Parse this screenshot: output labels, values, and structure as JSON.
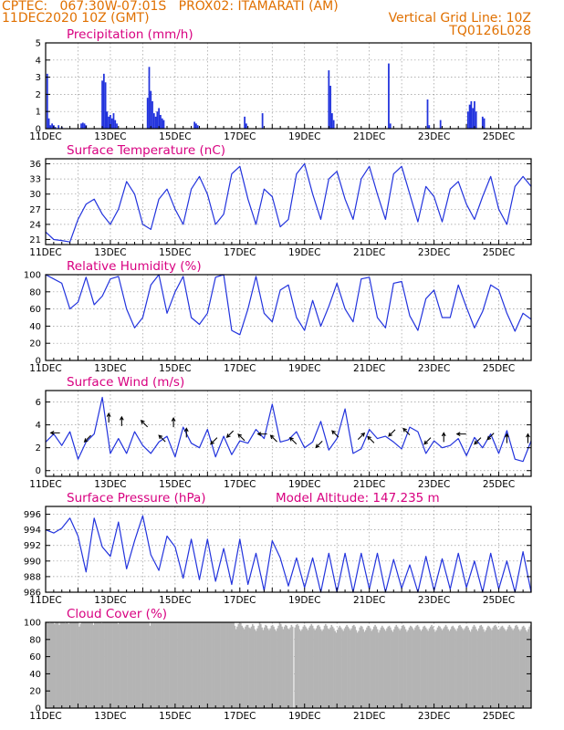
{
  "header": {
    "line1_left": "CPTEC:   067:30W-07:01S   PROX02: ITAMARATI (AM)",
    "line2_left": "11DEC2020 10Z (GMT)",
    "line2_right": "Vertical Grid Line: 10Z",
    "line3_right": "TQ0126L028"
  },
  "colors": {
    "title": "#d80080",
    "header": "#e07000",
    "series": "#2233dd",
    "cloud": "#b4b4b4",
    "arrow": "#000000"
  },
  "x_axis": {
    "days": 15,
    "labels": [
      "11DEC",
      "13DEC",
      "15DEC",
      "17DEC",
      "19DEC",
      "21DEC",
      "23DEC",
      "25DEC"
    ],
    "hidden_year": "2020"
  },
  "chart_data": [
    {
      "type": "bar",
      "title": "Precipitation (mm/h)",
      "ylim": [
        0,
        5
      ],
      "yticks": [
        0,
        1,
        2,
        3,
        4,
        5
      ],
      "grid": true,
      "bars": [
        [
          0.05,
          3.2
        ],
        [
          0.1,
          0.6
        ],
        [
          0.15,
          0.2
        ],
        [
          0.2,
          0.3
        ],
        [
          0.25,
          0.2
        ],
        [
          0.3,
          0.1
        ],
        [
          0.4,
          0.2
        ],
        [
          0.5,
          0.1
        ],
        [
          1.1,
          0.3
        ],
        [
          1.15,
          0.35
        ],
        [
          1.2,
          0.3
        ],
        [
          1.25,
          0.2
        ],
        [
          1.75,
          2.8
        ],
        [
          1.8,
          3.2
        ],
        [
          1.85,
          2.7
        ],
        [
          1.9,
          1.0
        ],
        [
          1.95,
          0.7
        ],
        [
          2.0,
          0.8
        ],
        [
          2.05,
          0.6
        ],
        [
          2.1,
          0.9
        ],
        [
          2.15,
          0.5
        ],
        [
          2.2,
          0.3
        ],
        [
          3.15,
          1.8
        ],
        [
          3.2,
          3.6
        ],
        [
          3.25,
          2.2
        ],
        [
          3.3,
          1.6
        ],
        [
          3.35,
          0.9
        ],
        [
          3.4,
          0.7
        ],
        [
          3.45,
          1.0
        ],
        [
          3.5,
          1.2
        ],
        [
          3.55,
          0.8
        ],
        [
          3.6,
          0.6
        ],
        [
          3.65,
          0.5
        ],
        [
          4.6,
          0.4
        ],
        [
          4.65,
          0.3
        ],
        [
          4.7,
          0.2
        ],
        [
          6.15,
          0.7
        ],
        [
          6.2,
          0.3
        ],
        [
          6.7,
          0.9
        ],
        [
          8.75,
          3.4
        ],
        [
          8.8,
          2.5
        ],
        [
          8.85,
          0.9
        ],
        [
          8.9,
          0.5
        ],
        [
          10.6,
          3.8
        ],
        [
          10.65,
          0.3
        ],
        [
          11.8,
          1.7
        ],
        [
          11.85,
          0.2
        ],
        [
          12.2,
          0.5
        ],
        [
          13.05,
          1.0
        ],
        [
          13.1,
          1.4
        ],
        [
          13.15,
          1.6
        ],
        [
          13.2,
          1.2
        ],
        [
          13.25,
          1.6
        ],
        [
          13.3,
          1.0
        ],
        [
          13.5,
          0.7
        ],
        [
          13.55,
          0.6
        ]
      ]
    },
    {
      "type": "line",
      "title": "Surface Temperature (nC)",
      "ylim": [
        20,
        37
      ],
      "yticks": [
        21,
        24,
        27,
        30,
        33,
        36
      ],
      "grid": true,
      "x": [
        0,
        0.25,
        0.5,
        0.75,
        1.0,
        1.25,
        1.5,
        1.75,
        2.0,
        2.25,
        2.5,
        2.75,
        3.0,
        3.25,
        3.5,
        3.75,
        4.0,
        4.25,
        4.5,
        4.75,
        5.0,
        5.25,
        5.5,
        5.75,
        6.0,
        6.25,
        6.5,
        6.75,
        7.0,
        7.25,
        7.5,
        7.75,
        8.0,
        8.25,
        8.5,
        8.75,
        9.0,
        9.25,
        9.5,
        9.75,
        10.0,
        10.25,
        10.5,
        10.75,
        11.0,
        11.25,
        11.5,
        11.75,
        12.0,
        12.25,
        12.5,
        12.75,
        13.0,
        13.25,
        13.5,
        13.75,
        14.0,
        14.25,
        14.5,
        14.75,
        15.0
      ],
      "y": [
        22.5,
        21,
        20.8,
        20.5,
        25,
        28,
        29,
        26,
        24,
        27,
        32.5,
        30,
        24,
        23,
        29,
        31,
        27,
        24,
        31,
        33.5,
        30,
        24,
        26,
        34,
        35.5,
        29,
        24,
        31,
        29.5,
        23.5,
        25,
        34,
        36,
        30,
        25,
        33,
        34.5,
        29,
        25,
        33,
        35.5,
        30,
        25,
        34,
        35.5,
        30,
        24.5,
        31.5,
        29.5,
        24.5,
        31,
        32.5,
        28,
        25,
        29.5,
        33.5,
        27,
        24,
        31.5,
        33.5,
        31.5
      ]
    },
    {
      "type": "line",
      "title": "Relative Humidity (%)",
      "ylim": [
        0,
        100
      ],
      "yticks": [
        0,
        20,
        40,
        60,
        80,
        100
      ],
      "grid": true,
      "x": [
        0,
        0.25,
        0.5,
        0.75,
        1.0,
        1.25,
        1.5,
        1.75,
        2.0,
        2.25,
        2.5,
        2.75,
        3.0,
        3.25,
        3.5,
        3.75,
        4.0,
        4.25,
        4.5,
        4.75,
        5.0,
        5.25,
        5.5,
        5.75,
        6.0,
        6.25,
        6.5,
        6.75,
        7.0,
        7.25,
        7.5,
        7.75,
        8.0,
        8.25,
        8.5,
        8.75,
        9.0,
        9.25,
        9.5,
        9.75,
        10.0,
        10.25,
        10.5,
        10.75,
        11.0,
        11.25,
        11.5,
        11.75,
        12.0,
        12.25,
        12.5,
        12.75,
        13.0,
        13.25,
        13.5,
        13.75,
        14.0,
        14.25,
        14.5,
        14.75,
        15.0
      ],
      "y": [
        100,
        95,
        90,
        60,
        68,
        97,
        65,
        75,
        95,
        98,
        60,
        38,
        50,
        88,
        100,
        55,
        80,
        98,
        50,
        42,
        55,
        97,
        100,
        35,
        30,
        60,
        98,
        55,
        45,
        82,
        88,
        50,
        35,
        70,
        40,
        63,
        90,
        60,
        45,
        95,
        97,
        50,
        38,
        90,
        92,
        52,
        35,
        72,
        82,
        50,
        50,
        88,
        62,
        38,
        57,
        88,
        82,
        55,
        34,
        55,
        48
      ]
    },
    {
      "type": "line",
      "title": "Surface Wind (m/s)",
      "ylim": [
        -0.5,
        7
      ],
      "yticks": [
        0,
        2,
        4,
        6
      ],
      "grid": true,
      "x": [
        0,
        0.25,
        0.5,
        0.75,
        1.0,
        1.25,
        1.5,
        1.75,
        2.0,
        2.25,
        2.5,
        2.75,
        3.0,
        3.25,
        3.5,
        3.75,
        4.0,
        4.25,
        4.5,
        4.75,
        5.0,
        5.25,
        5.5,
        5.75,
        6.0,
        6.25,
        6.5,
        6.75,
        7.0,
        7.25,
        7.5,
        7.75,
        8.0,
        8.25,
        8.5,
        8.75,
        9.0,
        9.25,
        9.5,
        9.75,
        10.0,
        10.25,
        10.5,
        10.75,
        11.0,
        11.25,
        11.5,
        11.75,
        12.0,
        12.25,
        12.5,
        12.75,
        13.0,
        13.25,
        13.5,
        13.75,
        14.0,
        14.25,
        14.5,
        14.75,
        15.0
      ],
      "y": [
        2.5,
        3.2,
        2.2,
        3.4,
        1.0,
        2.5,
        3.2,
        6.4,
        1.5,
        2.8,
        1.5,
        3.4,
        2.2,
        1.5,
        2.5,
        3.0,
        1.2,
        3.8,
        2.4,
        2.0,
        3.6,
        1.2,
        3.0,
        1.4,
        2.6,
        2.4,
        3.6,
        2.8,
        5.8,
        2.5,
        2.7,
        3.4,
        2.0,
        2.5,
        4.3,
        1.8,
        2.8,
        5.4,
        1.5,
        1.9,
        3.6,
        2.8,
        3.0,
        2.5,
        1.9,
        3.8,
        3.4,
        1.5,
        2.6,
        2.0,
        2.2,
        2.8,
        1.3,
        2.9,
        2.0,
        3.2,
        1.5,
        3.5,
        1.0,
        0.8,
        2.6
      ],
      "arrows": [
        {
          "day": 0.3,
          "y": 3.3,
          "dir": "W"
        },
        {
          "day": 1.3,
          "y": 2.8,
          "dir": "SW"
        },
        {
          "day": 1.95,
          "y": 4.6,
          "dir": "N"
        },
        {
          "day": 2.35,
          "y": 4.3,
          "dir": "N"
        },
        {
          "day": 3.05,
          "y": 4.1,
          "dir": "NW"
        },
        {
          "day": 3.6,
          "y": 2.8,
          "dir": "NW"
        },
        {
          "day": 3.95,
          "y": 4.2,
          "dir": "N"
        },
        {
          "day": 4.35,
          "y": 3.3,
          "dir": "N"
        },
        {
          "day": 5.2,
          "y": 2.6,
          "dir": "SW"
        },
        {
          "day": 5.7,
          "y": 3.2,
          "dir": "SW"
        },
        {
          "day": 6.05,
          "y": 2.9,
          "dir": "NW"
        },
        {
          "day": 6.7,
          "y": 3.2,
          "dir": "W"
        },
        {
          "day": 7.05,
          "y": 2.8,
          "dir": "NW"
        },
        {
          "day": 7.65,
          "y": 2.6,
          "dir": "NW"
        },
        {
          "day": 8.45,
          "y": 2.3,
          "dir": "SW"
        },
        {
          "day": 8.95,
          "y": 3.2,
          "dir": "NW"
        },
        {
          "day": 9.75,
          "y": 3.0,
          "dir": "NE"
        },
        {
          "day": 10.05,
          "y": 2.7,
          "dir": "NW"
        },
        {
          "day": 10.7,
          "y": 3.3,
          "dir": "SW"
        },
        {
          "day": 11.15,
          "y": 3.4,
          "dir": "NW"
        },
        {
          "day": 11.8,
          "y": 2.6,
          "dir": "SW"
        },
        {
          "day": 12.3,
          "y": 2.9,
          "dir": "N"
        },
        {
          "day": 12.85,
          "y": 3.2,
          "dir": "W"
        },
        {
          "day": 13.35,
          "y": 2.6,
          "dir": "SW"
        },
        {
          "day": 13.75,
          "y": 3.0,
          "dir": "SW"
        },
        {
          "day": 14.25,
          "y": 2.8,
          "dir": "N"
        },
        {
          "day": 14.9,
          "y": 2.8,
          "dir": "N"
        }
      ]
    },
    {
      "type": "line",
      "title": "Surface Pressure (hPa)",
      "annotation": "Model Altitude: 147.235  m",
      "ylim": [
        986,
        997
      ],
      "yticks": [
        986,
        988,
        990,
        992,
        994,
        996
      ],
      "grid": true,
      "x": [
        0,
        0.25,
        0.5,
        0.75,
        1.0,
        1.25,
        1.5,
        1.75,
        2.0,
        2.25,
        2.5,
        2.75,
        3.0,
        3.25,
        3.5,
        3.75,
        4.0,
        4.25,
        4.5,
        4.75,
        5.0,
        5.25,
        5.5,
        5.75,
        6.0,
        6.25,
        6.5,
        6.75,
        7.0,
        7.25,
        7.5,
        7.75,
        8.0,
        8.25,
        8.5,
        8.75,
        9.0,
        9.25,
        9.5,
        9.75,
        10.0,
        10.25,
        10.5,
        10.75,
        11.0,
        11.25,
        11.5,
        11.75,
        12.0,
        12.25,
        12.5,
        12.75,
        13.0,
        13.25,
        13.5,
        13.75,
        14.0,
        14.25,
        14.5,
        14.75,
        15.0
      ],
      "y": [
        994,
        993.6,
        994.2,
        995.5,
        993.2,
        988.6,
        995.5,
        991.8,
        990.6,
        995,
        989,
        992.6,
        995.8,
        990.8,
        988.8,
        993.2,
        991.8,
        987.8,
        992.8,
        987.6,
        992.8,
        987.4,
        991.6,
        987,
        992.8,
        987,
        991,
        986.2,
        992.6,
        990.4,
        986.8,
        990.4,
        986.6,
        990.4,
        986,
        991,
        986,
        991,
        986,
        991,
        986.4,
        991,
        985.6,
        990.2,
        986.5,
        989.5,
        985.6,
        990.6,
        986.2,
        990.3,
        986.4,
        991,
        986.6,
        990,
        985.6,
        991,
        986.4,
        990,
        985.6,
        991.2,
        985.5
      ]
    },
    {
      "type": "area",
      "title": "Cloud Cover (%)",
      "ylim": [
        0,
        100
      ],
      "yticks": [
        0,
        20,
        40,
        60,
        80,
        100
      ],
      "grid": true,
      "values": [
        100,
        100,
        100,
        99,
        100,
        100,
        100,
        98,
        100,
        100,
        100,
        97,
        100,
        100,
        100,
        100,
        99,
        100,
        100,
        98,
        100,
        100,
        100,
        100,
        100,
        100,
        100,
        100,
        95,
        98,
        100,
        100,
        100,
        100,
        100,
        100,
        100,
        100,
        100,
        100,
        97,
        100,
        100,
        100,
        100,
        100,
        100,
        99,
        100,
        100,
        100,
        100,
        100,
        100,
        100,
        100,
        100,
        100,
        100,
        100,
        100,
        98,
        100,
        100,
        100,
        100,
        100,
        100,
        100,
        100,
        100,
        100,
        100,
        100,
        100,
        100,
        100,
        100,
        100,
        100,
        100,
        100,
        100,
        100,
        100,
        100,
        100,
        100,
        96,
        100,
        100,
        100,
        100,
        100,
        100,
        100,
        100,
        100,
        100,
        100,
        100,
        100,
        100,
        100,
        100,
        100,
        100,
        100,
        100,
        100,
        100,
        100,
        100,
        100,
        100,
        100,
        100,
        100,
        100,
        100,
        100,
        100,
        100,
        100,
        100,
        100,
        100,
        100,
        100,
        100,
        100,
        100,
        100,
        100,
        100,
        100,
        100,
        100,
        100,
        100,
        100,
        100,
        100,
        100,
        100,
        100,
        100,
        100,
        100,
        100,
        100,
        100,
        100,
        100,
        100,
        100,
        100,
        100,
        100,
        100,
        96,
        92,
        95,
        98,
        100,
        99,
        96,
        94,
        92,
        95,
        97,
        97,
        94,
        93,
        95,
        98,
        96,
        92,
        90,
        93,
        96,
        100,
        98,
        94,
        91,
        94,
        97,
        96,
        93,
        91,
        93,
        96,
        97,
        95,
        92,
        90,
        93,
        96,
        100,
        98,
        95,
        92,
        95,
        97,
        96,
        93,
        92,
        94,
        97,
        95,
        0,
        94,
        97,
        98,
        96,
        92,
        90,
        92,
        95,
        97,
        95,
        93,
        91,
        94,
        96,
        98,
        96,
        93,
        91,
        93,
        96,
        97,
        95,
        92,
        90,
        92,
        96,
        98,
        96,
        93,
        92,
        94,
        97,
        95,
        93,
        90,
        88,
        91,
        94,
        96,
        94,
        92,
        90,
        93,
        95,
        97,
        95,
        93,
        91,
        93,
        96,
        97,
        95,
        91,
        88,
        90,
        94,
        96,
        95,
        92,
        89,
        91,
        94,
        96,
        95,
        93,
        90,
        92,
        95,
        97,
        95,
        92,
        88,
        91,
        94,
        96,
        94,
        92,
        90,
        93,
        95,
        96,
        94,
        91,
        89,
        92,
        95,
        97,
        95,
        93,
        91,
        93,
        96,
        97,
        95,
        92,
        89,
        91,
        94,
        96,
        95,
        93,
        91,
        94,
        96,
        97,
        95,
        92,
        90,
        92,
        95,
        96,
        94,
        92,
        90,
        93,
        95,
        97,
        95,
        92,
        89,
        91,
        94,
        96,
        95,
        93,
        91,
        93,
        95,
        97,
        95,
        92,
        90,
        92,
        95,
        96,
        94,
        92,
        90,
        93,
        96,
        97,
        95,
        93,
        91,
        93,
        95,
        96,
        94,
        91,
        89,
        92,
        95,
        97,
        95,
        92,
        90,
        93,
        96,
        97,
        95,
        92,
        89,
        91,
        94,
        96,
        95,
        93,
        91,
        94,
        96,
        97,
        95,
        92,
        90,
        93,
        95,
        96,
        94,
        92,
        90,
        92,
        95,
        97,
        95,
        93,
        91,
        93,
        96,
        97,
        95,
        92,
        90,
        92,
        95,
        96,
        94,
        91,
        89,
        92,
        95,
        97
      ]
    }
  ]
}
